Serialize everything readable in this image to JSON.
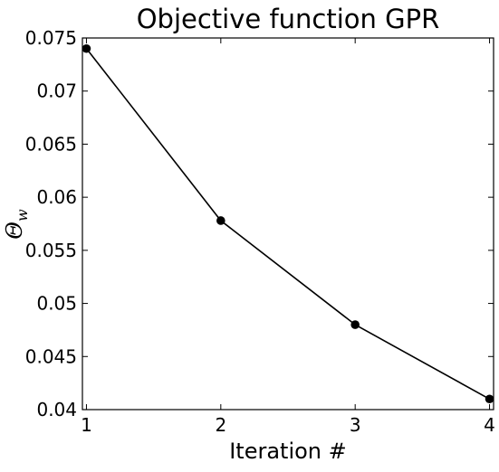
{
  "chart_data": {
    "type": "line",
    "title": "Objective function GPR",
    "xlabel": "Iteration #",
    "ylabel": "Θ_w",
    "ylabel_main": "Θ",
    "ylabel_sub": "w",
    "x": [
      1,
      2,
      3,
      4
    ],
    "values": [
      0.074,
      0.0578,
      0.048,
      0.041
    ],
    "xlim": [
      0.97,
      4.03
    ],
    "ylim": [
      0.04,
      0.075
    ],
    "xticks": [
      1,
      2,
      3,
      4
    ],
    "xtick_labels": [
      "1",
      "2",
      "3",
      "4"
    ],
    "yticks": [
      0.04,
      0.045,
      0.05,
      0.055,
      0.06,
      0.065,
      0.07,
      0.075
    ],
    "ytick_labels": [
      "0.04",
      "0.045",
      "0.05",
      "0.055",
      "0.06",
      "0.065",
      "0.07",
      "0.075"
    ],
    "grid": false,
    "line_color": "#000000",
    "marker_color": "#000000",
    "marker": "circle"
  }
}
